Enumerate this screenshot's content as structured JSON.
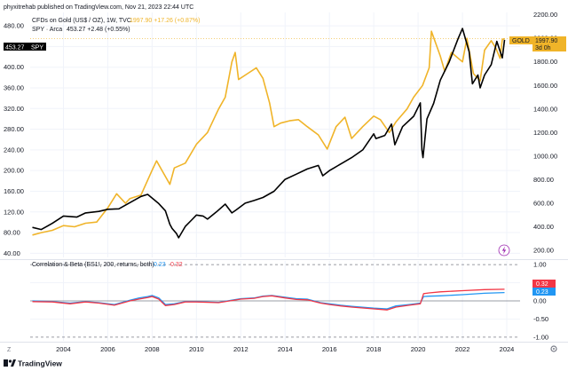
{
  "publish_line": "phyxitrehab published on TradingView.com, Nov 21, 2023 22:44 UTC",
  "colors": {
    "gold": "#f0b429",
    "spy": "#000000",
    "corr": "#2196f3",
    "beta": "#f23645",
    "grid": "#f0f3fa",
    "text": "#131722"
  },
  "legend": {
    "gold_title": "CFDs on Gold (US$ / OZ), 1W, TVC",
    "gold_values": "1997.90  +17.26 (+0.87%)",
    "spy_title": "SPY · Arca",
    "spy_values": "453.27  +2.48 (+0.55%)"
  },
  "indicator_legend": {
    "title": "Correlation & Beta (ES1!, 200, returns, both)",
    "corr_value": "0.23",
    "beta_value": "0.32"
  },
  "price_tags": {
    "spy_value": "453.27",
    "spy_symbol": "SPY",
    "gold_value": "1997.90",
    "gold_symbol": "GOLD",
    "gold_countdown": "3d 0h"
  },
  "bottom_bar": {
    "zoom_label": "Z",
    "settings_icon": "gear-icon",
    "logo_icon": "tradingview-logo-icon",
    "logo_text": "TradingView",
    "lightning_icon": "lightning-icon"
  },
  "chart_data": [
    {
      "type": "line",
      "x_ticks": [
        "2004",
        "2006",
        "2008",
        "2010",
        "2012",
        "2014",
        "2016",
        "2018",
        "2020",
        "2022",
        "2024"
      ],
      "x_range": [
        2002.5,
        2024.6
      ],
      "left_axis": {
        "ticks": [
          40,
          80,
          120,
          160,
          200,
          240,
          280,
          320,
          360,
          400,
          440,
          480
        ],
        "range": [
          32,
          506
        ]
      },
      "right_axis": {
        "ticks": [
          200,
          400,
          600,
          800,
          1000,
          1200,
          1400,
          1600,
          1800,
          2000,
          2200
        ],
        "range": [
          140,
          2220
        ]
      },
      "series": [
        {
          "name": "SPY",
          "axis": "left",
          "x": [
            2002.6,
            2003.0,
            2003.5,
            2004.0,
            2004.6,
            2005.0,
            2005.6,
            2006.0,
            2006.5,
            2007.0,
            2007.5,
            2007.8,
            2008.3,
            2008.6,
            2008.8,
            2008.9,
            2009.1,
            2009.2,
            2009.5,
            2009.8,
            2010.0,
            2010.3,
            2010.5,
            2010.9,
            2011.3,
            2011.6,
            2011.8,
            2012.2,
            2012.6,
            2013.0,
            2013.5,
            2014.0,
            2014.5,
            2015.0,
            2015.5,
            2015.7,
            2016.0,
            2016.2,
            2016.6,
            2017.0,
            2017.5,
            2018.0,
            2018.1,
            2018.5,
            2018.8,
            2018.95,
            2019.3,
            2019.8,
            2020.1,
            2020.17,
            2020.22,
            2020.4,
            2020.7,
            2021.0,
            2021.4,
            2021.8,
            2022.0,
            2022.3,
            2022.45,
            2022.7,
            2022.8,
            2023.0,
            2023.3,
            2023.55,
            2023.8,
            2023.9
          ],
          "y": [
            90,
            86,
            98,
            112,
            110,
            118,
            121,
            125,
            126,
            138,
            150,
            154,
            136,
            122,
            96,
            88,
            78,
            70,
            92,
            105,
            114,
            112,
            106,
            120,
            135,
            118,
            124,
            137,
            142,
            148,
            160,
            183,
            193,
            203,
            210,
            190,
            200,
            205,
            215,
            225,
            240,
            271,
            262,
            268,
            290,
            250,
            285,
            305,
            331,
            240,
            225,
            300,
            330,
            375,
            410,
            455,
            475,
            430,
            368,
            385,
            360,
            385,
            405,
            450,
            418,
            453
          ]
        },
        {
          "name": "GOLD",
          "axis": "right",
          "x": [
            2002.6,
            2003.0,
            2003.5,
            2004.0,
            2004.5,
            2005.0,
            2005.5,
            2006.0,
            2006.4,
            2006.8,
            2007.0,
            2007.5,
            2008.0,
            2008.2,
            2008.5,
            2008.8,
            2009.0,
            2009.5,
            2010.0,
            2010.5,
            2011.0,
            2011.3,
            2011.6,
            2011.75,
            2011.9,
            2012.3,
            2012.7,
            2013.0,
            2013.3,
            2013.5,
            2013.8,
            2014.2,
            2014.6,
            2015.0,
            2015.5,
            2015.9,
            2016.3,
            2016.7,
            2017.0,
            2017.5,
            2018.0,
            2018.3,
            2018.7,
            2019.0,
            2019.5,
            2019.8,
            2020.2,
            2020.5,
            2020.6,
            2021.0,
            2021.2,
            2021.5,
            2022.0,
            2022.2,
            2022.5,
            2022.8,
            2023.0,
            2023.3,
            2023.5,
            2023.7,
            2023.8,
            2023.9
          ],
          "y": [
            330,
            350,
            370,
            410,
            400,
            430,
            440,
            560,
            680,
            600,
            640,
            670,
            880,
            960,
            860,
            760,
            900,
            940,
            1100,
            1200,
            1400,
            1500,
            1800,
            1880,
            1650,
            1700,
            1750,
            1660,
            1450,
            1250,
            1280,
            1300,
            1310,
            1250,
            1180,
            1060,
            1250,
            1330,
            1150,
            1250,
            1340,
            1310,
            1200,
            1290,
            1400,
            1500,
            1600,
            1750,
            2060,
            1850,
            1720,
            1880,
            1800,
            2000,
            1700,
            1640,
            1900,
            1980,
            1920,
            1830,
            1990,
            1998
          ]
        }
      ]
    },
    {
      "type": "line",
      "title": "Correlation & Beta (ES1!, 200, returns, both)",
      "x_range": [
        2002.5,
        2024.6
      ],
      "y_ticks": [
        -1.0,
        -0.5,
        0.0,
        0.5,
        1.0
      ],
      "y_tick_labels": [
        "-1.00",
        "-0.50",
        "0.00",
        "0.50",
        "1.00"
      ],
      "y_range": [
        -1.1,
        1.1
      ],
      "series": [
        {
          "name": "Correlation",
          "x": [
            2002.6,
            2003.5,
            2004.3,
            2005.0,
            2005.6,
            2006.3,
            2007.0,
            2007.4,
            2007.8,
            2008.0,
            2008.3,
            2008.6,
            2009.0,
            2009.5,
            2010.0,
            2011.0,
            2011.6,
            2012.0,
            2012.6,
            2013.0,
            2013.4,
            2014.0,
            2014.5,
            2015.0,
            2015.6,
            2016.0,
            2016.5,
            2017.0,
            2018.0,
            2018.6,
            2019.0,
            2019.6,
            2020.1,
            2020.25,
            2020.5,
            2021.0,
            2022.0,
            2023.0,
            2023.9
          ],
          "y": [
            0.0,
            -0.02,
            -0.06,
            -0.02,
            -0.05,
            -0.1,
            0.02,
            0.08,
            0.12,
            0.15,
            0.08,
            -0.1,
            -0.08,
            -0.02,
            -0.02,
            -0.04,
            0.02,
            0.06,
            0.08,
            0.13,
            0.15,
            0.1,
            0.06,
            0.05,
            -0.05,
            -0.08,
            -0.12,
            -0.15,
            -0.2,
            -0.22,
            -0.14,
            -0.1,
            -0.06,
            0.12,
            0.13,
            0.14,
            0.17,
            0.21,
            0.23
          ]
        },
        {
          "name": "Beta",
          "x": [
            2002.6,
            2003.5,
            2004.3,
            2005.0,
            2005.6,
            2006.3,
            2007.0,
            2007.4,
            2007.8,
            2008.0,
            2008.3,
            2008.6,
            2009.0,
            2009.5,
            2010.0,
            2011.0,
            2011.6,
            2012.0,
            2012.6,
            2013.0,
            2013.4,
            2014.0,
            2014.5,
            2015.0,
            2015.6,
            2016.0,
            2016.5,
            2017.0,
            2018.0,
            2018.6,
            2019.0,
            2019.6,
            2020.1,
            2020.25,
            2020.5,
            2021.0,
            2022.0,
            2023.0,
            2023.9
          ],
          "y": [
            -0.02,
            -0.03,
            -0.08,
            -0.03,
            -0.06,
            -0.12,
            0.0,
            0.05,
            0.09,
            0.12,
            0.05,
            -0.13,
            -0.1,
            -0.03,
            -0.03,
            -0.05,
            0.01,
            0.05,
            0.07,
            0.12,
            0.14,
            0.08,
            0.04,
            0.03,
            -0.06,
            -0.1,
            -0.14,
            -0.17,
            -0.22,
            -0.25,
            -0.17,
            -0.12,
            -0.08,
            0.2,
            0.22,
            0.25,
            0.28,
            0.31,
            0.32
          ]
        }
      ]
    }
  ]
}
